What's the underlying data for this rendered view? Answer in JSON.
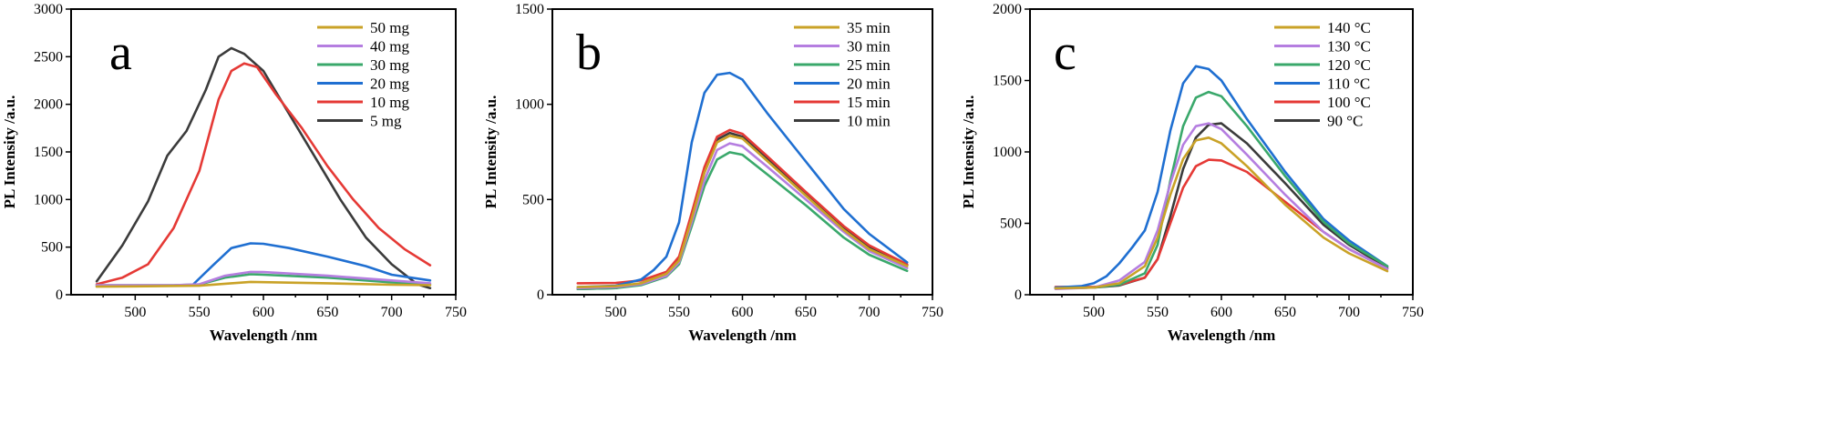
{
  "chart_data": [
    {
      "type": "line",
      "panel": "a",
      "xlabel": "Wavelength /nm",
      "ylabel": "PL Intensity /a.u.",
      "xlim": [
        450,
        750
      ],
      "ylim": [
        0,
        3000
      ],
      "xticks": [
        "500",
        "550",
        "600",
        "650",
        "700",
        "750"
      ],
      "yticks": [
        "0",
        "500",
        "1000",
        "1500",
        "2000",
        "2500",
        "3000"
      ],
      "legend_position": "top-right",
      "series": [
        {
          "name": "50 mg",
          "color": "#c9a227",
          "x": [
            470,
            500,
            550,
            575,
            590,
            600,
            650,
            700,
            730
          ],
          "values": [
            85,
            88,
            95,
            120,
            135,
            132,
            120,
            105,
            100
          ]
        },
        {
          "name": "40 mg",
          "color": "#b57ee0",
          "x": [
            470,
            500,
            530,
            550,
            570,
            590,
            600,
            650,
            700,
            730
          ],
          "values": [
            100,
            100,
            100,
            110,
            200,
            240,
            238,
            200,
            150,
            120
          ]
        },
        {
          "name": "30 mg",
          "color": "#3aa86b",
          "x": [
            470,
            500,
            530,
            550,
            570,
            590,
            600,
            650,
            700,
            730
          ],
          "values": [
            100,
            100,
            100,
            108,
            180,
            215,
            210,
            180,
            130,
            110
          ]
        },
        {
          "name": "20 mg",
          "color": "#1f6fd1",
          "x": [
            470,
            500,
            530,
            545,
            560,
            575,
            590,
            600,
            620,
            650,
            680,
            700,
            730
          ],
          "values": [
            90,
            92,
            95,
            105,
            300,
            490,
            540,
            535,
            490,
            400,
            300,
            210,
            150
          ]
        },
        {
          "name": "10 mg",
          "color": "#e53935",
          "x": [
            470,
            490,
            510,
            530,
            550,
            565,
            575,
            585,
            595,
            610,
            630,
            650,
            670,
            690,
            710,
            730
          ],
          "values": [
            110,
            180,
            320,
            700,
            1300,
            2050,
            2350,
            2430,
            2390,
            2100,
            1750,
            1350,
            1000,
            700,
            480,
            310
          ]
        },
        {
          "name": "5 mg",
          "color": "#3b3b3b",
          "x": [
            470,
            490,
            510,
            525,
            540,
            555,
            565,
            575,
            585,
            600,
            620,
            640,
            660,
            680,
            700,
            720,
            730
          ],
          "values": [
            140,
            520,
            980,
            1460,
            1720,
            2150,
            2500,
            2590,
            2530,
            2350,
            1900,
            1450,
            1000,
            600,
            320,
            110,
            70
          ]
        }
      ]
    },
    {
      "type": "line",
      "panel": "b",
      "xlabel": "Wavelength /nm",
      "ylabel": "PL Intensity /a.u.",
      "xlim": [
        450,
        750
      ],
      "ylim": [
        0,
        1500
      ],
      "xticks": [
        "500",
        "550",
        "600",
        "650",
        "700",
        "750"
      ],
      "yticks": [
        "0",
        "500",
        "1000",
        "1500"
      ],
      "legend_position": "top-right",
      "series": [
        {
          "name": "35 min",
          "color": "#c9a227",
          "x": [
            470,
            500,
            520,
            540,
            550,
            560,
            570,
            580,
            590,
            600,
            620,
            650,
            680,
            700,
            730
          ],
          "values": [
            40,
            45,
            60,
            110,
            180,
            400,
            640,
            800,
            835,
            820,
            700,
            520,
            340,
            240,
            150
          ]
        },
        {
          "name": "30 min",
          "color": "#b57ee0",
          "x": [
            470,
            500,
            520,
            540,
            550,
            560,
            570,
            580,
            590,
            600,
            620,
            650,
            680,
            700,
            730
          ],
          "values": [
            35,
            40,
            55,
            100,
            170,
            380,
            600,
            760,
            795,
            780,
            670,
            500,
            330,
            230,
            140
          ]
        },
        {
          "name": "25 min",
          "color": "#3aa86b",
          "x": [
            470,
            500,
            520,
            540,
            550,
            560,
            570,
            580,
            590,
            600,
            620,
            650,
            680,
            700,
            730
          ],
          "values": [
            30,
            35,
            50,
            95,
            160,
            360,
            570,
            710,
            748,
            735,
            630,
            470,
            300,
            210,
            125
          ]
        },
        {
          "name": "20 min",
          "color": "#1f6fd1",
          "x": [
            470,
            500,
            520,
            530,
            540,
            550,
            560,
            570,
            580,
            590,
            600,
            620,
            650,
            680,
            700,
            730
          ],
          "values": [
            40,
            48,
            80,
            130,
            200,
            380,
            800,
            1060,
            1155,
            1165,
            1130,
            950,
            700,
            450,
            320,
            170
          ]
        },
        {
          "name": "15 min",
          "color": "#e53935",
          "x": [
            470,
            500,
            520,
            540,
            550,
            560,
            570,
            580,
            590,
            600,
            620,
            650,
            680,
            700,
            730
          ],
          "values": [
            60,
            62,
            75,
            120,
            200,
            430,
            670,
            830,
            865,
            845,
            725,
            540,
            360,
            260,
            160
          ]
        },
        {
          "name": "10 min",
          "color": "#3b3b3b",
          "x": [
            470,
            500,
            520,
            540,
            550,
            560,
            570,
            580,
            590,
            600,
            620,
            650,
            680,
            700,
            730
          ],
          "values": [
            30,
            35,
            60,
            110,
            190,
            410,
            650,
            815,
            850,
            830,
            715,
            535,
            350,
            250,
            155
          ]
        }
      ]
    },
    {
      "type": "line",
      "panel": "c",
      "xlabel": "Wavelength /nm",
      "ylabel": "PL Intensity /a.u.",
      "xlim": [
        450,
        750
      ],
      "ylim": [
        0,
        2000
      ],
      "xticks": [
        "500",
        "550",
        "600",
        "650",
        "700",
        "750"
      ],
      "yticks": [
        "0",
        "500",
        "1000",
        "1500",
        "2000"
      ],
      "legend_position": "top-right",
      "series": [
        {
          "name": "140 °C",
          "color": "#c9a227",
          "x": [
            470,
            500,
            520,
            540,
            550,
            560,
            570,
            580,
            590,
            600,
            620,
            650,
            680,
            700,
            730
          ],
          "values": [
            45,
            50,
            80,
            200,
            400,
            700,
            950,
            1080,
            1100,
            1060,
            900,
            630,
            400,
            290,
            165
          ]
        },
        {
          "name": "130 °C",
          "color": "#b57ee0",
          "x": [
            470,
            500,
            520,
            540,
            550,
            560,
            570,
            580,
            590,
            600,
            620,
            650,
            680,
            700,
            730
          ],
          "values": [
            40,
            50,
            100,
            230,
            450,
            780,
            1050,
            1180,
            1200,
            1160,
            980,
            700,
            440,
            320,
            180
          ]
        },
        {
          "name": "120 °C",
          "color": "#3aa86b",
          "x": [
            470,
            500,
            520,
            540,
            550,
            560,
            570,
            580,
            590,
            600,
            620,
            650,
            680,
            700,
            730
          ],
          "values": [
            45,
            50,
            70,
            150,
            350,
            800,
            1180,
            1380,
            1420,
            1390,
            1180,
            830,
            510,
            360,
            200
          ]
        },
        {
          "name": "110 °C",
          "color": "#1f6fd1",
          "x": [
            470,
            490,
            500,
            510,
            520,
            530,
            540,
            550,
            560,
            570,
            580,
            590,
            600,
            620,
            650,
            680,
            700,
            730
          ],
          "values": [
            50,
            60,
            80,
            130,
            220,
            330,
            450,
            720,
            1150,
            1480,
            1600,
            1580,
            1500,
            1230,
            860,
            530,
            380,
            200
          ]
        },
        {
          "name": "100 °C",
          "color": "#e53935",
          "x": [
            470,
            500,
            520,
            540,
            550,
            560,
            570,
            580,
            590,
            600,
            620,
            650,
            680,
            700,
            730
          ],
          "values": [
            55,
            55,
            70,
            120,
            250,
            500,
            750,
            900,
            945,
            940,
            860,
            650,
            440,
            320,
            180
          ]
        },
        {
          "name": "90 °C",
          "color": "#3b3b3b",
          "x": [
            470,
            500,
            520,
            540,
            550,
            560,
            570,
            580,
            590,
            600,
            620,
            650,
            680,
            700,
            730
          ],
          "values": [
            45,
            50,
            65,
            120,
            250,
            550,
            880,
            1100,
            1190,
            1200,
            1060,
            780,
            490,
            350,
            190
          ]
        }
      ]
    }
  ]
}
